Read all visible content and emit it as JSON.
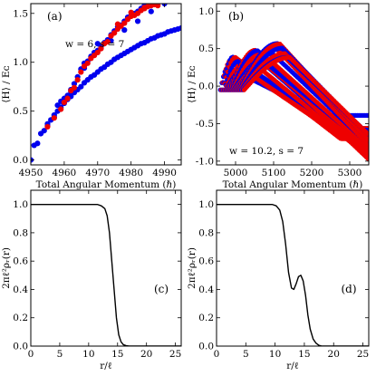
{
  "chart_data": [
    {
      "type": "scatter",
      "panel_label": "(a)",
      "annotation": "w = 6, s = 7",
      "xlabel": "Total Angular Momentum (ℏ)",
      "ylabel": "⟨H⟩ / Eᴄ",
      "xlim": [
        4950,
        4995
      ],
      "ylim": [
        -0.05,
        1.6
      ],
      "xticks": [
        4950,
        4960,
        4970,
        4980,
        4990
      ],
      "yticks": [
        0.0,
        0.5,
        1.0,
        1.5
      ],
      "colors": {
        "series_a": "#0000ee",
        "series_b": "#ee0000"
      },
      "series": [
        {
          "color_key": "series_a",
          "points": [
            [
              4950,
              0.0
            ],
            [
              4951,
              0.15
            ],
            [
              4952,
              0.17
            ],
            [
              4953,
              0.27
            ],
            [
              4954,
              0.3
            ],
            [
              4955,
              0.37
            ],
            [
              4956,
              0.41
            ],
            [
              4957,
              0.46
            ],
            [
              4958,
              0.5
            ],
            [
              4959,
              0.54
            ],
            [
              4960,
              0.58
            ],
            [
              4961,
              0.62
            ],
            [
              4962,
              0.65
            ],
            [
              4963,
              0.69
            ],
            [
              4964,
              0.72
            ],
            [
              4965,
              0.75
            ],
            [
              4966,
              0.79
            ],
            [
              4967,
              0.82
            ],
            [
              4968,
              0.85
            ],
            [
              4969,
              0.87
            ],
            [
              4970,
              0.9
            ],
            [
              4971,
              0.93
            ],
            [
              4972,
              0.95
            ],
            [
              4973,
              0.98
            ],
            [
              4974,
              1.0
            ],
            [
              4975,
              1.03
            ],
            [
              4976,
              1.05
            ],
            [
              4977,
              1.07
            ],
            [
              4978,
              1.09
            ],
            [
              4979,
              1.11
            ],
            [
              4980,
              1.13
            ],
            [
              4981,
              1.15
            ],
            [
              4982,
              1.17
            ],
            [
              4983,
              1.19
            ],
            [
              4984,
              1.2
            ],
            [
              4985,
              1.22
            ],
            [
              4986,
              1.24
            ],
            [
              4987,
              1.25
            ],
            [
              4988,
              1.27
            ],
            [
              4989,
              1.28
            ],
            [
              4990,
              1.29
            ],
            [
              4991,
              1.31
            ],
            [
              4992,
              1.32
            ],
            [
              4993,
              1.33
            ],
            [
              4994,
              1.34
            ],
            [
              4995,
              1.35
            ],
            [
              4955,
              0.35
            ],
            [
              4957,
              0.44
            ],
            [
              4959,
              0.6
            ],
            [
              4960,
              0.63
            ],
            [
              4961,
              0.66
            ],
            [
              4962,
              0.72
            ],
            [
              4963,
              0.78
            ],
            [
              4964,
              0.85
            ],
            [
              4965,
              0.93
            ],
            [
              4966,
              0.99
            ],
            [
              4967,
              1.01
            ],
            [
              4968,
              1.06
            ],
            [
              4969,
              1.1
            ],
            [
              4970,
              1.12
            ],
            [
              4971,
              1.16
            ],
            [
              4972,
              1.2
            ],
            [
              4973,
              1.23
            ],
            [
              4974,
              1.28
            ],
            [
              4975,
              1.32
            ],
            [
              4976,
              1.36
            ],
            [
              4977,
              1.38
            ],
            [
              4978,
              1.42
            ],
            [
              4979,
              1.46
            ],
            [
              4980,
              1.48
            ],
            [
              4981,
              1.5
            ],
            [
              4982,
              1.52
            ],
            [
              4983,
              1.55
            ],
            [
              4984,
              1.58
            ],
            [
              4986,
              1.59
            ],
            [
              4987,
              1.6
            ],
            [
              4958,
              0.56
            ],
            [
              4962,
              0.7
            ],
            [
              4966,
              0.94
            ],
            [
              4970,
              1.19
            ],
            [
              4974,
              1.22
            ],
            [
              4978,
              1.33
            ],
            [
              4982,
              1.42
            ],
            [
              4986,
              1.52
            ],
            [
              4990,
              1.6
            ]
          ]
        },
        {
          "color_key": "series_b",
          "points": [
            [
              4955,
              0.34
            ],
            [
              4957,
              0.43
            ],
            [
              4959,
              0.52
            ],
            [
              4960,
              0.59
            ],
            [
              4961,
              0.63
            ],
            [
              4962,
              0.71
            ],
            [
              4963,
              0.74
            ],
            [
              4964,
              0.82
            ],
            [
              4965,
              0.9
            ],
            [
              4966,
              0.96
            ],
            [
              4967,
              0.99
            ],
            [
              4968,
              1.04
            ],
            [
              4969,
              1.07
            ],
            [
              4970,
              1.1
            ],
            [
              4971,
              1.14
            ],
            [
              4972,
              1.19
            ],
            [
              4973,
              1.21
            ],
            [
              4974,
              1.27
            ],
            [
              4975,
              1.3
            ],
            [
              4976,
              1.34
            ],
            [
              4977,
              1.37
            ],
            [
              4978,
              1.4
            ],
            [
              4979,
              1.44
            ],
            [
              4980,
              1.47
            ],
            [
              4981,
              1.48
            ],
            [
              4982,
              1.5
            ],
            [
              4983,
              1.53
            ],
            [
              4984,
              1.56
            ],
            [
              4985,
              1.57
            ],
            [
              4986,
              1.58
            ],
            [
              4987,
              1.59
            ],
            [
              4988,
              1.6
            ],
            [
              4976,
              1.39
            ],
            [
              4980,
              1.51
            ],
            [
              4984,
              1.55
            ],
            [
              4988,
              1.58
            ]
          ]
        }
      ]
    },
    {
      "type": "scatter",
      "panel_label": "(b)",
      "annotation": "w = 10.2,  s = 7",
      "xlabel": "Total Angular Momentum (ℏ)",
      "ylabel": "⟨H⟩ / Eᴄ",
      "xlim": [
        4950,
        5350
      ],
      "ylim": [
        -1.05,
        1.1
      ],
      "xticks": [
        5000,
        5100,
        5200,
        5300
      ],
      "yticks": [
        -1.0,
        -0.5,
        0.0,
        0.5,
        1.0
      ],
      "colors": {
        "series_a": "#0000ee",
        "series_b": "#ee0000"
      },
      "curve_family": {
        "description": "fan of dotted curves starting near L=4960-5000, rising to ~0.3-0.5, then dropping; successive curves extend further right",
        "count": 26
      }
    },
    {
      "type": "line",
      "panel_label": "(c)",
      "xlabel": "r/ℓ",
      "ylabel": "2πℓ²ρᵣ(r)",
      "xlim": [
        0,
        26
      ],
      "ylim": [
        0,
        1.1
      ],
      "xticks": [
        0,
        5,
        10,
        15,
        20,
        25
      ],
      "yticks": [
        0.0,
        0.2,
        0.4,
        0.6,
        0.8,
        1.0
      ],
      "x": [
        0,
        11.5,
        12.2,
        12.8,
        13.2,
        13.6,
        14.0,
        14.4,
        14.8,
        15.2,
        15.6,
        16.0,
        16.5,
        17.0,
        26
      ],
      "y": [
        1.0,
        1.0,
        0.99,
        0.97,
        0.92,
        0.8,
        0.6,
        0.4,
        0.2,
        0.08,
        0.03,
        0.01,
        0.003,
        0.0,
        0.0
      ]
    },
    {
      "type": "line",
      "panel_label": "(d)",
      "xlabel": "r/ℓ",
      "ylabel": "2πℓ²ρᵣ(r)",
      "xlim": [
        0,
        26
      ],
      "ylim": [
        0,
        1.1
      ],
      "xticks": [
        0,
        5,
        10,
        15,
        20,
        25
      ],
      "yticks": [
        0.0,
        0.2,
        0.4,
        0.6,
        0.8,
        1.0
      ],
      "x": [
        0,
        9.5,
        10.2,
        10.8,
        11.3,
        11.8,
        12.3,
        12.8,
        13.2,
        13.6,
        14.0,
        14.4,
        14.8,
        15.2,
        15.6,
        16.0,
        16.5,
        17.0,
        17.5,
        18.0,
        26
      ],
      "y": [
        1.0,
        1.0,
        0.99,
        0.96,
        0.88,
        0.72,
        0.52,
        0.41,
        0.4,
        0.44,
        0.49,
        0.5,
        0.46,
        0.36,
        0.22,
        0.12,
        0.05,
        0.02,
        0.005,
        0.0,
        0.0
      ]
    }
  ]
}
